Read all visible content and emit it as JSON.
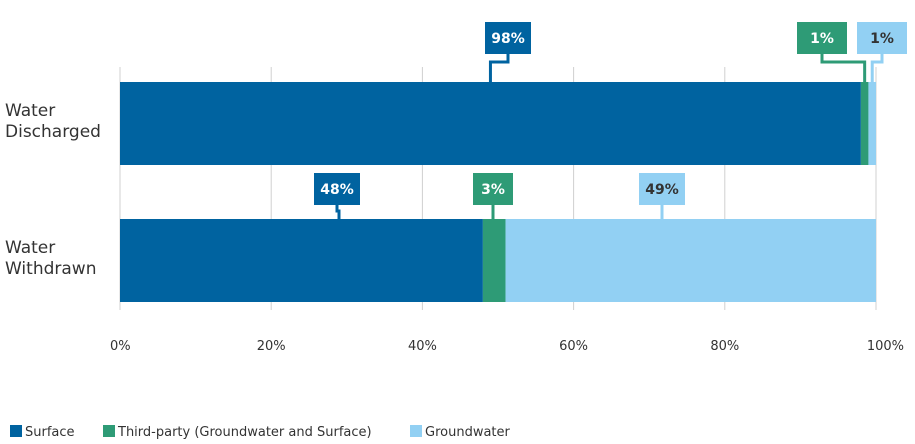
{
  "chart_data": {
    "type": "bar",
    "orientation": "horizontal",
    "stacked": true,
    "categories": [
      [
        "Water",
        "Discharged"
      ],
      [
        "Water",
        "Withdrawn"
      ]
    ],
    "series": [
      {
        "name": "Surface",
        "color": "#0063a0",
        "values": [
          98,
          48
        ]
      },
      {
        "name": "Third-party (Groundwater and Surface)",
        "color": "#2e9b76",
        "values": [
          1,
          3
        ]
      },
      {
        "name": "Groundwater",
        "color": "#92d0f3",
        "values": [
          1,
          49
        ]
      }
    ],
    "data_labels": [
      [
        "98%",
        "1%",
        "1%"
      ],
      [
        "48%",
        "3%",
        "49%"
      ]
    ],
    "xlim": [
      0,
      100
    ],
    "ticks": [
      "0%",
      "20%",
      "40%",
      "60%",
      "80%",
      "100%"
    ],
    "grid": true,
    "legend": "bottom-left"
  }
}
